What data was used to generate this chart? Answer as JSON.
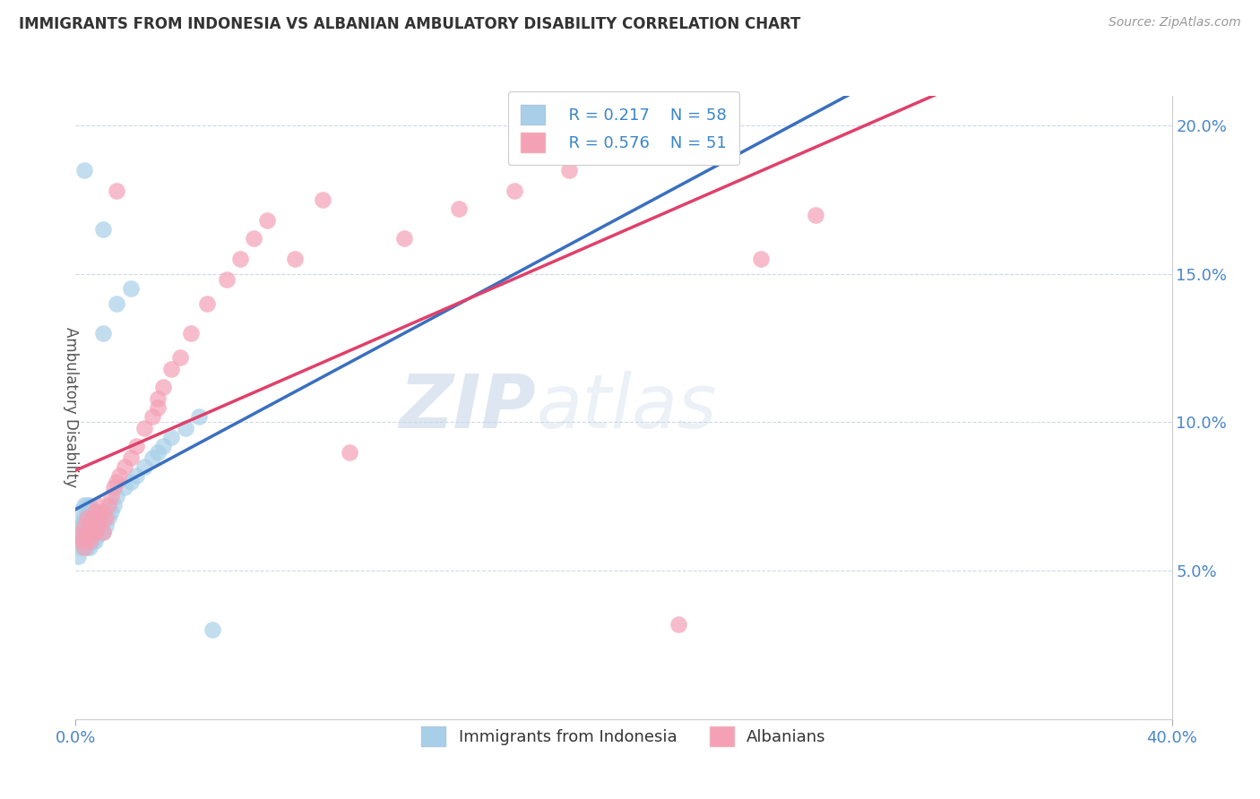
{
  "title": "IMMIGRANTS FROM INDONESIA VS ALBANIAN AMBULATORY DISABILITY CORRELATION CHART",
  "source": "Source: ZipAtlas.com",
  "ylabel": "Ambulatory Disability",
  "x_min": 0.0,
  "x_max": 0.4,
  "y_min": 0.0,
  "y_max": 0.21,
  "x_ticks": [
    0.0,
    0.4
  ],
  "x_tick_labels": [
    "0.0%",
    "40.0%"
  ],
  "y_ticks": [
    0.05,
    0.1,
    0.15,
    0.2
  ],
  "y_tick_labels": [
    "5.0%",
    "10.0%",
    "15.0%",
    "20.0%"
  ],
  "legend_r1": "R = 0.217",
  "legend_n1": "N = 58",
  "legend_r2": "R = 0.576",
  "legend_n2": "N = 51",
  "color_indonesia": "#a8cfe8",
  "color_albanian": "#f4a0b5",
  "line_color_blue": "#3a6fbf",
  "line_color_pink": "#e0406a",
  "line_color_dash": "#aaaaaa",
  "watermark_zip": "ZIP",
  "watermark_atlas": "atlas",
  "indonesia_scatter_x": [
    0.001,
    0.001,
    0.001,
    0.002,
    0.002,
    0.002,
    0.002,
    0.003,
    0.003,
    0.003,
    0.003,
    0.004,
    0.004,
    0.004,
    0.004,
    0.004,
    0.005,
    0.005,
    0.005,
    0.005,
    0.005,
    0.005,
    0.006,
    0.006,
    0.006,
    0.006,
    0.007,
    0.007,
    0.007,
    0.007,
    0.008,
    0.008,
    0.008,
    0.009,
    0.009,
    0.01,
    0.01,
    0.011,
    0.012,
    0.013,
    0.014,
    0.015,
    0.018,
    0.02,
    0.022,
    0.025,
    0.028,
    0.03,
    0.032,
    0.035,
    0.04,
    0.045,
    0.01,
    0.015,
    0.05,
    0.003,
    0.01,
    0.02
  ],
  "indonesia_scatter_y": [
    0.065,
    0.06,
    0.055,
    0.065,
    0.062,
    0.058,
    0.07,
    0.06,
    0.065,
    0.068,
    0.072,
    0.058,
    0.062,
    0.065,
    0.068,
    0.072,
    0.058,
    0.06,
    0.063,
    0.066,
    0.069,
    0.072,
    0.06,
    0.063,
    0.066,
    0.07,
    0.06,
    0.063,
    0.067,
    0.07,
    0.062,
    0.065,
    0.068,
    0.063,
    0.067,
    0.063,
    0.068,
    0.065,
    0.068,
    0.07,
    0.072,
    0.075,
    0.078,
    0.08,
    0.082,
    0.085,
    0.088,
    0.09,
    0.092,
    0.095,
    0.098,
    0.102,
    0.13,
    0.14,
    0.03,
    0.185,
    0.165,
    0.145
  ],
  "albanian_scatter_x": [
    0.001,
    0.002,
    0.003,
    0.003,
    0.004,
    0.004,
    0.005,
    0.005,
    0.006,
    0.006,
    0.007,
    0.007,
    0.008,
    0.008,
    0.009,
    0.01,
    0.01,
    0.011,
    0.012,
    0.013,
    0.014,
    0.015,
    0.016,
    0.018,
    0.02,
    0.022,
    0.025,
    0.028,
    0.03,
    0.032,
    0.035,
    0.038,
    0.042,
    0.048,
    0.055,
    0.06,
    0.065,
    0.07,
    0.08,
    0.09,
    0.1,
    0.12,
    0.14,
    0.16,
    0.18,
    0.2,
    0.22,
    0.25,
    0.27,
    0.03,
    0.015
  ],
  "albanian_scatter_y": [
    0.062,
    0.06,
    0.065,
    0.058,
    0.062,
    0.068,
    0.06,
    0.065,
    0.062,
    0.068,
    0.063,
    0.07,
    0.065,
    0.072,
    0.067,
    0.063,
    0.07,
    0.068,
    0.072,
    0.075,
    0.078,
    0.08,
    0.082,
    0.085,
    0.088,
    0.092,
    0.098,
    0.102,
    0.108,
    0.112,
    0.118,
    0.122,
    0.13,
    0.14,
    0.148,
    0.155,
    0.162,
    0.168,
    0.155,
    0.175,
    0.09,
    0.162,
    0.172,
    0.178,
    0.185,
    0.192,
    0.032,
    0.155,
    0.17,
    0.105,
    0.178
  ]
}
